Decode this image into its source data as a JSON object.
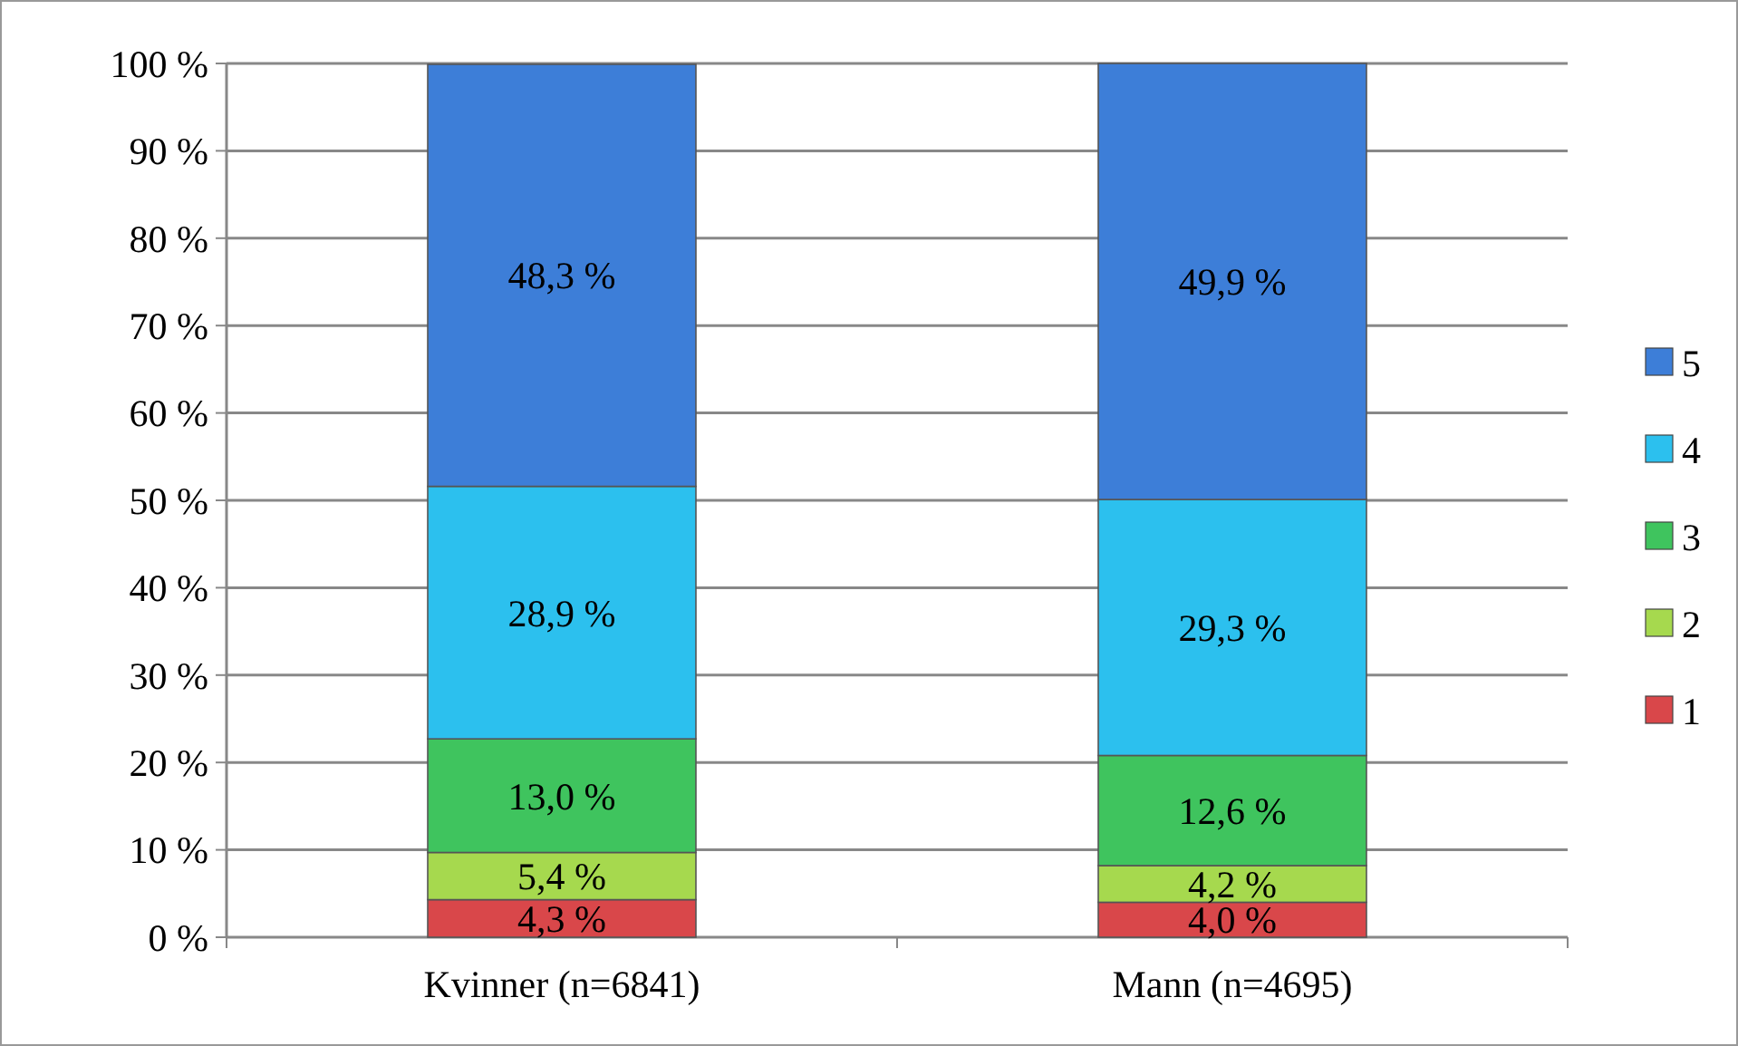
{
  "chart_data": {
    "type": "bar",
    "stacked": true,
    "categories": [
      "Kvinner (n=6841)",
      "Mann (n=4695)"
    ],
    "series": [
      {
        "name": "1",
        "color": "#d9474a",
        "values": [
          4.3,
          4.0
        ],
        "value_labels": [
          "4,3 %",
          "4,0 %"
        ]
      },
      {
        "name": "2",
        "color": "#a6d94e",
        "values": [
          5.4,
          4.2
        ],
        "value_labels": [
          "5,4 %",
          "4,2 %"
        ]
      },
      {
        "name": "3",
        "color": "#3fc45e",
        "values": [
          13.0,
          12.6
        ],
        "value_labels": [
          "13,0 %",
          "12,6 %"
        ]
      },
      {
        "name": "4",
        "color": "#2cc0ee",
        "values": [
          28.9,
          29.3
        ],
        "value_labels": [
          "28,9 %",
          "29,3 %"
        ]
      },
      {
        "name": "5",
        "color": "#3d7ed8",
        "values": [
          48.3,
          49.9
        ],
        "value_labels": [
          "48,3 %",
          "49,9 %"
        ]
      }
    ],
    "ylim": [
      0,
      100
    ],
    "yticks": [
      {
        "value": 0,
        "label": "0 %"
      },
      {
        "value": 10,
        "label": "10 %"
      },
      {
        "value": 20,
        "label": "20 %"
      },
      {
        "value": 30,
        "label": "30 %"
      },
      {
        "value": 40,
        "label": "40 %"
      },
      {
        "value": 50,
        "label": "50 %"
      },
      {
        "value": 60,
        "label": "60 %"
      },
      {
        "value": 70,
        "label": "70 %"
      },
      {
        "value": 80,
        "label": "80 %"
      },
      {
        "value": 90,
        "label": "90 %"
      },
      {
        "value": 100,
        "label": "100 %"
      }
    ],
    "grid": "y",
    "legend": "right"
  }
}
